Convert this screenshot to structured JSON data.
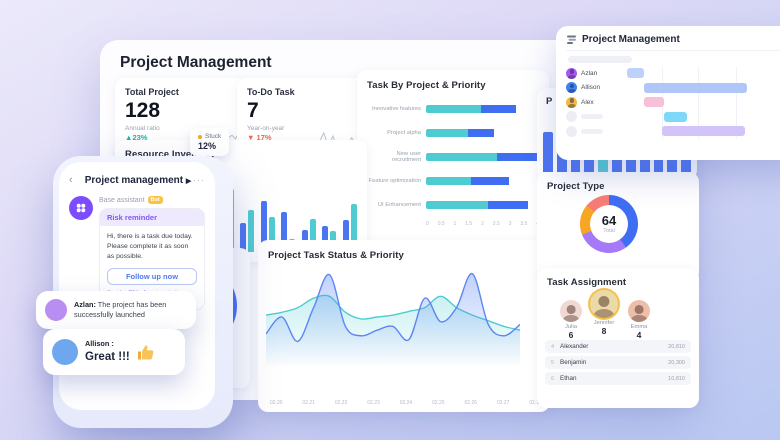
{
  "colors": {
    "blue": "#3f6ef2",
    "teal": "#4fccd1",
    "green": "#16b8a6",
    "red": "#f0664d",
    "purple_seg": "#a579f7",
    "orange_seg": "#f5a623",
    "salmon_seg": "#f87c75",
    "spark_gray": "#b9c3cf",
    "stuck_dot": "#f5a623"
  },
  "dashboard": {
    "title": "Project Management",
    "stats": [
      {
        "label": "Total Project",
        "value": "128",
        "sub": "Annual ratio",
        "arrow": "▲",
        "delta": "23%",
        "delta_color": "#16b8a6"
      },
      {
        "label": "To-Do Task",
        "value": "7",
        "sub": "Year-on-year",
        "arrow": "▼",
        "delta": "17%",
        "delta_color": "#f0664d"
      }
    ],
    "resource_inventory": {
      "title": "Resource Inventory"
    },
    "task_by_project": {
      "title": "Task By Project & Priority"
    },
    "partial_card": {
      "title": "P"
    },
    "task_status": {
      "title": "Project Task Status & Priority"
    },
    "project_type": {
      "title": "Project Type",
      "center_value": "64",
      "center_label": "Total"
    },
    "task_assignment": {
      "title": "Task Assignment",
      "featured": [
        {
          "name": "Julia",
          "count": "6",
          "bg": "#f0d9d3",
          "ring": "none"
        },
        {
          "name": "Jennifer",
          "count": "8",
          "bg": "#ecd9a8",
          "ring": "#f2c14e"
        },
        {
          "name": "Emma",
          "count": "4",
          "bg": "#edbfa9",
          "ring": "none"
        }
      ],
      "rows": [
        {
          "rank": "4",
          "name": "Alexander",
          "value": "20,810"
        },
        {
          "rank": "5",
          "name": "Benjamin",
          "value": "20,300"
        },
        {
          "rank": "6",
          "name": "Ethan",
          "value": "10,810"
        }
      ]
    },
    "stuck": {
      "label": "Stuck",
      "value": "12%"
    }
  },
  "gantt": {
    "title": "Project Management",
    "rows": [
      {
        "name": "Azlan",
        "avatar": "#a855f7",
        "skeleton": false,
        "bar": {
          "start": 2,
          "width": 10,
          "color": "#bcd2fa"
        }
      },
      {
        "name": "Allison",
        "avatar": "#3b82f6",
        "skeleton": false,
        "bar": {
          "start": 12,
          "width": 62,
          "color": "#aec6f8"
        }
      },
      {
        "name": "Alex",
        "avatar": "#f5b93c",
        "skeleton": false,
        "bar": {
          "start": 12,
          "width": 12,
          "color": "#f7c0d8"
        }
      },
      {
        "name": "",
        "avatar": "#eceef4",
        "skeleton": true,
        "bar": {
          "start": 24,
          "width": 14,
          "color": "#7ed9f8"
        }
      },
      {
        "name": "",
        "avatar": "#eceef4",
        "skeleton": true,
        "bar": {
          "start": 23,
          "width": 50,
          "color": "#d2c3f9"
        }
      }
    ],
    "gridlines": [
      26,
      51,
      77
    ]
  },
  "phone": {
    "back": "‹",
    "title": "Project management",
    "caret": "▶",
    "menu": "···",
    "assistant_name": "Base assistant",
    "bot_badge": "Bot",
    "risk_title": "Risk reminder",
    "risk_text": "Hi, there is a task due today. Please complete it as soon as possible.",
    "button": "Follow up now",
    "sent_prefix": "Sent by ",
    "sent_highlight": "@Lisa's",
    "sent_suffix": " automated workflow"
  },
  "bubbles": [
    {
      "name": "Azlan:",
      "text": " The project has been successfully launched",
      "avatar": "#b98ef2"
    },
    {
      "name": "Allison :",
      "text": "Great !!!",
      "avatar": "#6fa7ef"
    }
  ],
  "chart_data": [
    {
      "id": "task_by_project",
      "type": "bar",
      "orientation": "horizontal",
      "stacked": true,
      "title": "Task By Project & Priority",
      "categories": [
        "Innovative features",
        "Project alpha",
        "New user recruitment",
        "Feature optimization",
        "UI Enhancement"
      ],
      "series": [
        {
          "name": "primary",
          "color": "#4fccd1",
          "values": [
            1.95,
            1.5,
            2.5,
            1.6,
            2.2
          ]
        },
        {
          "name": "secondary",
          "color": "#3f6ef2",
          "values": [
            1.25,
            0.9,
            1.5,
            1.35,
            1.4
          ]
        }
      ],
      "xlim": [
        0,
        4
      ],
      "xticks": [
        "0",
        "0.5",
        "1",
        "1.5",
        "2",
        "2.5",
        "3",
        "3.5",
        "4"
      ]
    },
    {
      "id": "resource_inventory",
      "type": "bar",
      "title": "Resource Inventory",
      "ylim": [
        0,
        100
      ],
      "series": [
        {
          "name": "blue",
          "color": "#4b74f2",
          "values": [
            28,
            62,
            44,
            78,
            60,
            34,
            40,
            48
          ]
        },
        {
          "name": "teal",
          "color": "#4fccd1",
          "values": [
            45,
            95,
            64,
            53,
            20,
            50,
            32,
            72
          ]
        }
      ]
    },
    {
      "id": "task_status",
      "type": "area",
      "title": "Project Task Status & Priority",
      "xticks": [
        "02.20",
        "02.21",
        "02.22",
        "02.23",
        "02.24",
        "02.25",
        "02.26",
        "02.27",
        "02.28"
      ],
      "ylim": [
        0,
        100
      ],
      "series": [
        {
          "name": "teal",
          "color": "#4fccd1",
          "values": [
            52,
            55,
            60,
            70,
            72,
            55,
            48,
            50,
            52,
            56,
            60,
            72,
            60,
            52,
            46,
            40,
            36
          ]
        },
        {
          "name": "blue",
          "color": "#5b86f5",
          "values": [
            32,
            50,
            24,
            60,
            95,
            40,
            30,
            36,
            40,
            26,
            70,
            45,
            60,
            96,
            42,
            30,
            42
          ]
        }
      ]
    },
    {
      "id": "project_type",
      "type": "donut",
      "title": "Project Type",
      "center_value": "64",
      "center_label": "Total",
      "segments": [
        {
          "color": "#3f6ef2",
          "pct": 40
        },
        {
          "color": "#a579f7",
          "pct": 29
        },
        {
          "color": "#f5a623",
          "pct": 17
        },
        {
          "color": "#f87c75",
          "pct": 14
        }
      ]
    },
    {
      "id": "partial_bars",
      "type": "bar",
      "title": "P",
      "values": [
        100,
        62,
        60,
        62,
        61,
        62,
        60,
        62,
        61,
        62,
        60
      ],
      "colors": [
        "#4b74f2",
        "#4b74f2",
        "#4b74f2",
        "#4b74f2",
        "#53cfd2",
        "#4b74f2",
        "#4b74f2",
        "#4b74f2",
        "#4b74f2",
        "#4b74f2",
        "#4b74f2"
      ]
    },
    {
      "id": "sparklines",
      "type": "line",
      "series": [
        {
          "name": "total_project",
          "values": [
            3,
            4.5,
            3.5,
            5,
            4,
            6,
            5,
            7.5,
            6,
            8,
            9,
            7.5,
            10
          ]
        },
        {
          "name": "todo_task",
          "values": [
            5,
            8,
            4,
            7,
            3,
            5,
            4,
            6.5,
            4,
            5
          ]
        }
      ]
    }
  ]
}
